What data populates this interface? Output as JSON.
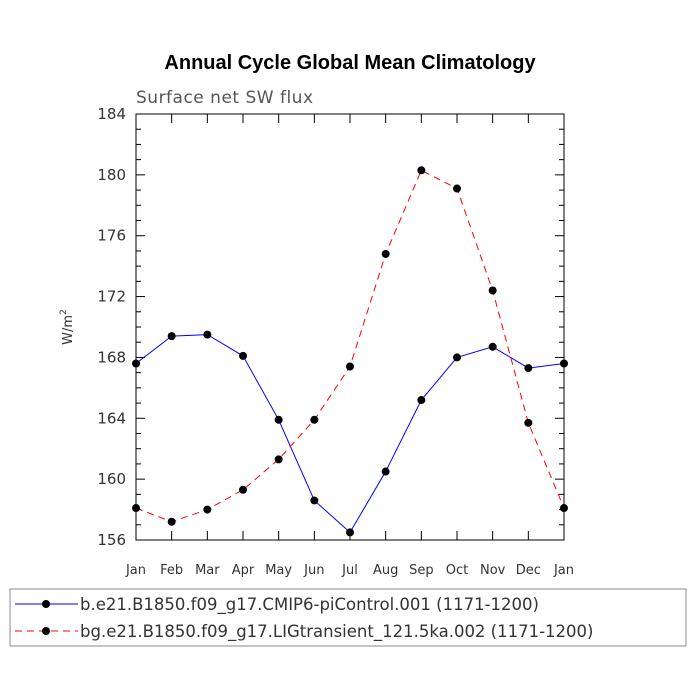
{
  "chart_data": {
    "type": "line",
    "title": "Annual Cycle Global Mean Climatology",
    "subtitle": "Surface net SW flux",
    "ylabel": "W/m",
    "ylabel_sup": "2",
    "xlabel": "",
    "categories": [
      "Jan",
      "Feb",
      "Mar",
      "Apr",
      "May",
      "Jun",
      "Jul",
      "Aug",
      "Sep",
      "Oct",
      "Nov",
      "Dec",
      "Jan"
    ],
    "ylim": [
      156,
      184
    ],
    "yticks": [
      156,
      160,
      164,
      168,
      172,
      176,
      180,
      184
    ],
    "grid": false,
    "legend_position": "bottom",
    "series": [
      {
        "name": "b.e21.B1850.f09_g17.CMIP6-piControl.001 (1171-1200)",
        "color": "#0000ff",
        "line_style": "solid",
        "marker": "filled-circle",
        "values": [
          167.6,
          169.4,
          169.5,
          168.1,
          163.9,
          158.6,
          156.5,
          160.5,
          165.2,
          168.0,
          168.7,
          167.3,
          167.6
        ]
      },
      {
        "name": "bg.e21.B1850.f09_g17.LIGtransient_121.5ka.002 (1171-1200)",
        "color": "#ff0000",
        "line_style": "dashed",
        "marker": "filled-circle",
        "values": [
          158.1,
          157.2,
          158.0,
          159.3,
          161.3,
          163.9,
          167.4,
          174.8,
          180.3,
          179.1,
          172.4,
          163.7,
          158.1
        ]
      }
    ]
  }
}
